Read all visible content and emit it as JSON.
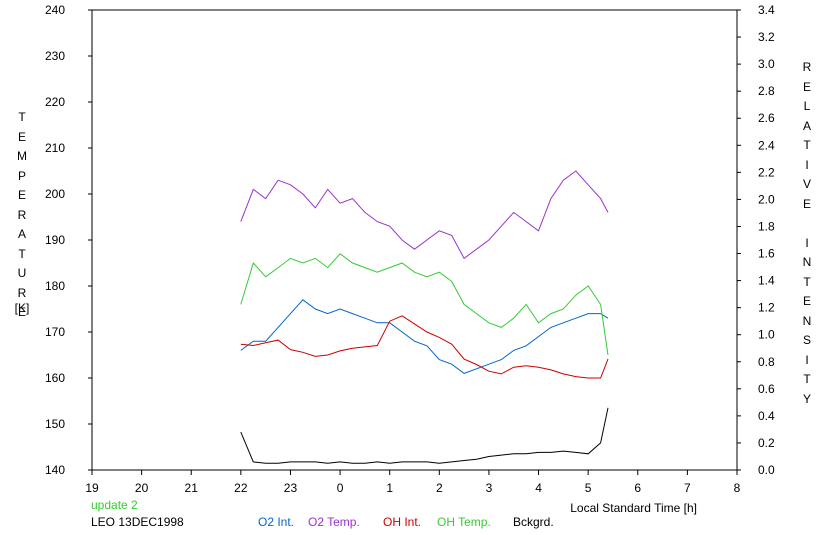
{
  "chart_data": {
    "type": "line",
    "left_axis": {
      "label": "TEMPERATURE",
      "unit": "[K]",
      "ylim": [
        140,
        240
      ],
      "ticks": [
        140,
        150,
        160,
        170,
        180,
        190,
        200,
        210,
        220,
        230,
        240
      ]
    },
    "right_axis": {
      "label": "RELATIVE INTENSITY",
      "ylim": [
        0.0,
        3.4
      ],
      "ticks": [
        "0.0",
        "0.2",
        "0.4",
        "0.6",
        "0.8",
        "1.0",
        "1.2",
        "1.4",
        "1.6",
        "1.8",
        "2.0",
        "2.2",
        "2.4",
        "2.6",
        "2.8",
        "3.0",
        "3.2",
        "3.4"
      ]
    },
    "x_axis": {
      "label": "Local Standard Time [h]",
      "ticks": [
        "19",
        "20",
        "21",
        "22",
        "23",
        "0",
        "1",
        "2",
        "3",
        "4",
        "5",
        "6",
        "7",
        "8"
      ]
    },
    "grid": false,
    "annotations": {
      "update": "update 2",
      "station": "LEO 13DEC1998"
    },
    "legend_position": "bottom",
    "series": [
      {
        "name": "O2 Int.",
        "axis": "left",
        "color": "#0066cc",
        "x": [
          22.0,
          22.25,
          22.5,
          22.75,
          23.0,
          23.25,
          23.5,
          23.75,
          24.0,
          24.25,
          24.5,
          24.75,
          25.0,
          25.25,
          25.5,
          25.75,
          26.0,
          26.25,
          26.5,
          26.75,
          27.0,
          27.25,
          27.5,
          27.75,
          28.0,
          28.25,
          28.5,
          28.75,
          29.0,
          29.25,
          29.4
        ],
        "y": [
          166,
          168,
          168,
          171,
          174,
          177,
          175,
          174,
          175,
          174,
          173,
          172,
          172,
          170,
          168,
          167,
          164,
          163,
          161,
          162,
          163,
          164,
          166,
          167,
          169,
          171,
          172,
          173,
          174,
          174,
          173
        ]
      },
      {
        "name": "O2 Temp.",
        "axis": "left",
        "color": "#9933cc",
        "x": [
          22.0,
          22.25,
          22.5,
          22.75,
          23.0,
          23.25,
          23.5,
          23.75,
          24.0,
          24.25,
          24.5,
          24.75,
          25.0,
          25.25,
          25.5,
          25.75,
          26.0,
          26.25,
          26.5,
          26.75,
          27.0,
          27.25,
          27.5,
          27.75,
          28.0,
          28.25,
          28.5,
          28.75,
          29.0,
          29.25,
          29.4
        ],
        "y": [
          194,
          201,
          199,
          203,
          202,
          200,
          197,
          201,
          198,
          199,
          196,
          194,
          193,
          190,
          188,
          190,
          192,
          191,
          186,
          188,
          190,
          193,
          196,
          194,
          192,
          199,
          203,
          205,
          202,
          199,
          196
        ]
      },
      {
        "name": "OH Int.",
        "axis": "right",
        "color": "#cc0000",
        "x": [
          22.0,
          22.25,
          22.5,
          22.75,
          23.0,
          23.25,
          23.5,
          23.75,
          24.0,
          24.25,
          24.5,
          24.75,
          25.0,
          25.25,
          25.5,
          25.75,
          26.0,
          26.25,
          26.5,
          26.75,
          27.0,
          27.25,
          27.5,
          27.75,
          28.0,
          28.25,
          28.5,
          28.75,
          29.0,
          29.25,
          29.4
        ],
        "y": [
          0.93,
          0.92,
          0.94,
          0.96,
          0.89,
          0.87,
          0.84,
          0.85,
          0.88,
          0.9,
          0.91,
          0.92,
          1.1,
          1.14,
          1.08,
          1.02,
          0.98,
          0.93,
          0.82,
          0.78,
          0.73,
          0.71,
          0.76,
          0.77,
          0.76,
          0.74,
          0.71,
          0.69,
          0.68,
          0.68,
          0.82
        ]
      },
      {
        "name": "OH Temp.",
        "axis": "left",
        "color": "#33cc33",
        "x": [
          22.0,
          22.25,
          22.5,
          22.75,
          23.0,
          23.25,
          23.5,
          23.75,
          24.0,
          24.25,
          24.5,
          24.75,
          25.0,
          25.25,
          25.5,
          25.75,
          26.0,
          26.25,
          26.5,
          26.75,
          27.0,
          27.25,
          27.5,
          27.75,
          28.0,
          28.25,
          28.5,
          28.75,
          29.0,
          29.25,
          29.4
        ],
        "y": [
          176,
          185,
          182,
          184,
          186,
          185,
          186,
          184,
          187,
          185,
          184,
          183,
          184,
          185,
          183,
          182,
          183,
          181,
          176,
          174,
          172,
          171,
          173,
          176,
          172,
          174,
          175,
          178,
          180,
          176,
          165
        ]
      },
      {
        "name": "Bckgrd.",
        "axis": "right",
        "color": "#000000",
        "x": [
          22.0,
          22.25,
          22.5,
          22.75,
          23.0,
          23.25,
          23.5,
          23.75,
          24.0,
          24.25,
          24.5,
          24.75,
          25.0,
          25.25,
          25.5,
          25.75,
          26.0,
          26.25,
          26.5,
          26.75,
          27.0,
          27.25,
          27.5,
          27.75,
          28.0,
          28.25,
          28.5,
          28.75,
          29.0,
          29.25,
          29.4
        ],
        "y": [
          0.28,
          0.06,
          0.05,
          0.05,
          0.06,
          0.06,
          0.06,
          0.05,
          0.06,
          0.05,
          0.05,
          0.06,
          0.05,
          0.06,
          0.06,
          0.06,
          0.05,
          0.06,
          0.07,
          0.08,
          0.1,
          0.11,
          0.12,
          0.12,
          0.13,
          0.13,
          0.14,
          0.13,
          0.12,
          0.2,
          0.46
        ]
      }
    ]
  }
}
